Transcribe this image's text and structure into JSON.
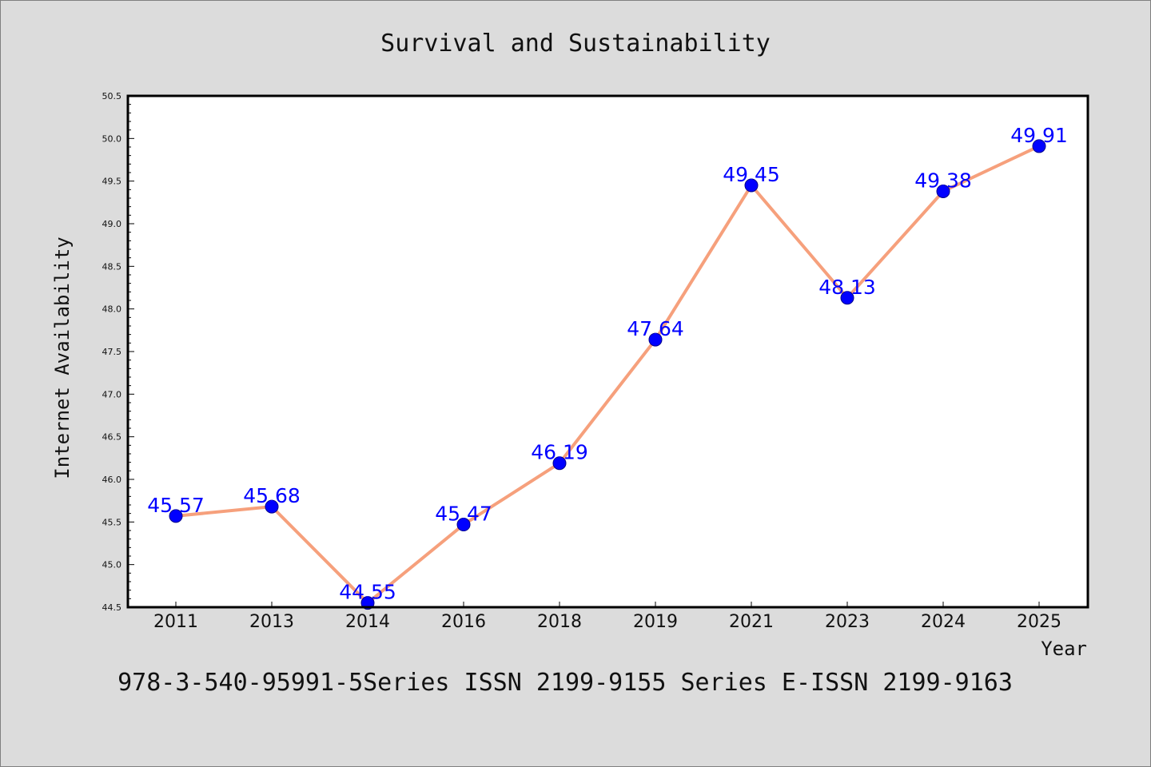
{
  "chart_data": {
    "type": "line",
    "title": "Survival and Sustainability",
    "xlabel": "Year",
    "ylabel": "Internet Availability",
    "categories": [
      "2011",
      "2013",
      "2014",
      "2016",
      "2018",
      "2019",
      "2021",
      "2023",
      "2024",
      "2025"
    ],
    "series": [
      {
        "values": [
          45.57,
          45.68,
          44.55,
          45.47,
          46.19,
          47.64,
          49.45,
          48.13,
          49.38,
          49.91
        ]
      }
    ],
    "ylim": [
      44.5,
      50.5
    ],
    "yticks": [
      44.5,
      45.0,
      45.5,
      46.0,
      46.5,
      47.0,
      47.5,
      48.0,
      48.5,
      49.0,
      49.5,
      50.0,
      50.5
    ],
    "grid": false,
    "data_labels": true,
    "legend": "none",
    "colors": {
      "background": "#dcdcdc",
      "plot_background": "#ffffff",
      "line": "#f6a07c",
      "marker": "#0000ff",
      "data_label": "#0000ff"
    }
  },
  "footer": {
    "text": "978-3-540-95991-5Series ISSN 2199-9155 Series E-ISSN 2199-9163"
  }
}
